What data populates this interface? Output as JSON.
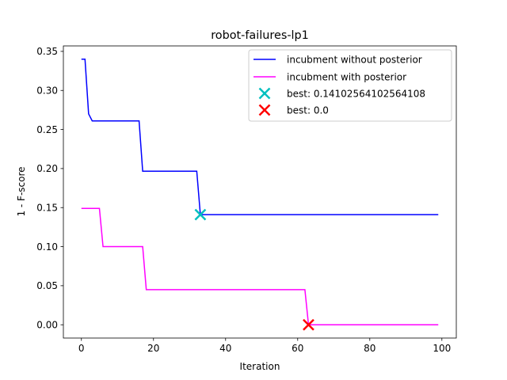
{
  "chart_data": {
    "type": "line",
    "title": "robot-failures-lp1",
    "xlabel": "Iteration",
    "ylabel": "1 - F-score",
    "xlim": [
      -5,
      104
    ],
    "ylim": [
      -0.017,
      0.357
    ],
    "xticks": [
      0,
      20,
      40,
      60,
      80,
      100
    ],
    "yticks": [
      0.0,
      0.05,
      0.1,
      0.15,
      0.2,
      0.25,
      0.3,
      0.35
    ],
    "ytick_labels": [
      "0.00",
      "0.05",
      "0.10",
      "0.15",
      "0.20",
      "0.25",
      "0.30",
      "0.35"
    ],
    "grid": false,
    "legend_position": "top-right",
    "series": [
      {
        "name": "incubment without posterior",
        "color": "#0000ff",
        "points": [
          [
            0,
            0.34
          ],
          [
            1,
            0.34
          ],
          [
            2,
            0.27
          ],
          [
            3,
            0.261
          ],
          [
            16,
            0.261
          ],
          [
            17,
            0.1966
          ],
          [
            32,
            0.1966
          ],
          [
            33,
            0.14102564102564108
          ],
          [
            99,
            0.14102564102564108
          ]
        ]
      },
      {
        "name": "incubment with posterior",
        "color": "#ff00ff",
        "points": [
          [
            0,
            0.149
          ],
          [
            5,
            0.149
          ],
          [
            6,
            0.1
          ],
          [
            17,
            0.1
          ],
          [
            18,
            0.045
          ],
          [
            62,
            0.045
          ],
          [
            63,
            0.0
          ],
          [
            99,
            0.0
          ]
        ]
      }
    ],
    "markers": [
      {
        "label": "best: 0.14102564102564108",
        "x": 33,
        "y": 0.14102564102564108,
        "color": "#00bfbf",
        "symbol": "x"
      },
      {
        "label": "best: 0.0",
        "x": 63,
        "y": 0.0,
        "color": "#ff0000",
        "symbol": "x"
      }
    ]
  }
}
